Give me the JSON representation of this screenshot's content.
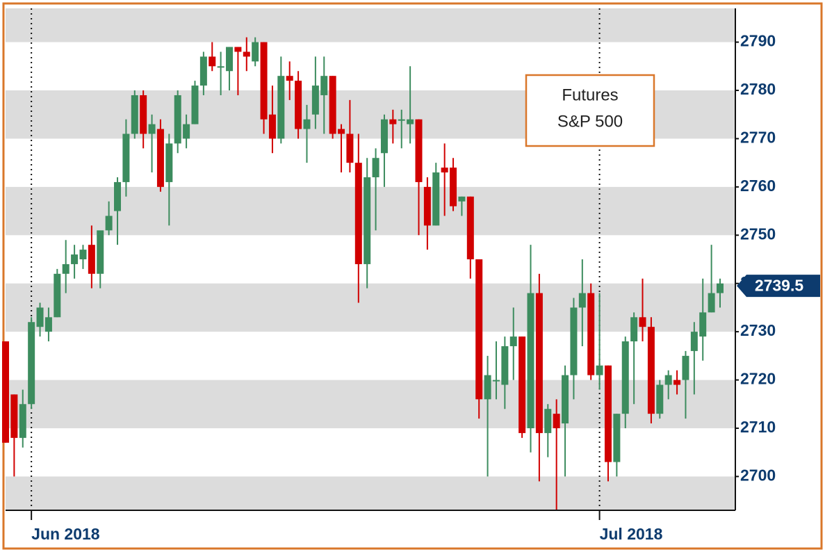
{
  "chart_data": {
    "type": "candlestick",
    "annotation": [
      "Futures",
      "S&P 500"
    ],
    "last_value": 2739.5,
    "up_color": "#3c8c5e",
    "down_color": "#d10000",
    "grid": "bands",
    "ylim": [
      2693,
      2797
    ],
    "yticks": [
      2700,
      2710,
      2720,
      2730,
      2740,
      2750,
      2760,
      2770,
      2780,
      2790
    ],
    "categories": [
      null,
      null,
      null,
      "Jun 2018",
      null,
      null,
      null,
      null,
      null,
      null,
      null,
      null,
      null,
      null,
      null,
      null,
      null,
      null,
      null,
      null,
      null,
      null,
      null,
      null,
      null,
      null,
      null,
      null,
      null,
      null,
      null,
      null,
      null,
      null,
      null,
      null,
      null,
      null,
      null,
      null,
      null,
      null,
      null,
      null,
      null,
      null,
      null,
      null,
      null,
      null,
      null,
      null,
      null,
      null,
      null,
      null,
      null,
      null,
      null,
      null,
      null,
      null,
      null,
      null,
      null,
      null,
      null,
      null,
      null,
      "Jul 2018",
      null,
      null,
      null,
      null,
      null,
      null,
      null,
      null,
      null,
      null,
      null,
      null,
      null,
      null
    ],
    "open": [
      2728,
      2717,
      2708,
      2715,
      2731,
      2730,
      2733,
      2742,
      2744,
      2745,
      2748,
      2742,
      2751,
      2755,
      2761,
      2771,
      2779,
      2771,
      2772,
      2761,
      2769,
      2770,
      2773,
      2781,
      2787,
      2785,
      2784,
      2789,
      2788,
      2786,
      2790,
      2775,
      2770,
      2783,
      2782,
      2772,
      2775,
      2779,
      2783,
      2772,
      2771,
      2765,
      2744,
      2762,
      2767,
      2774,
      2774,
      2773,
      2774,
      2760,
      2752,
      2764,
      2764,
      2757,
      2758,
      2745,
      2716,
      2720,
      2719,
      2727,
      2729,
      2710,
      2738,
      2709,
      2713,
      2711,
      2721,
      2735,
      2738,
      2721,
      2723,
      2703,
      2713,
      2728,
      2733,
      2731,
      2713,
      2719,
      2720,
      2720,
      2726,
      2729,
      2734,
      2738
    ],
    "high": [
      2728,
      2717,
      2718,
      2733,
      2736,
      2735,
      2743,
      2749,
      2748,
      2748,
      2752,
      2750,
      2757,
      2762,
      2774,
      2780,
      2780,
      2775,
      2774,
      2771,
      2780,
      2775,
      2782,
      2788,
      2790,
      2788,
      2789,
      2789,
      2791,
      2791,
      2790,
      2781,
      2787,
      2786,
      2784,
      2777,
      2787,
      2787,
      2783,
      2773,
      2778,
      2771,
      2766,
      2768,
      2775,
      2776,
      2776,
      2785,
      2774,
      2762,
      2765,
      2769,
      2766,
      2758,
      2758,
      2745,
      2725,
      2728,
      2729,
      2735,
      2729,
      2748,
      2742,
      2715,
      2716,
      2723,
      2737,
      2745,
      2740,
      2738,
      2723,
      2713,
      2729,
      2734,
      2741,
      2733,
      2720,
      2722,
      2722,
      2726,
      2732,
      2741,
      2748,
      2741
    ],
    "low": [
      2707,
      2700,
      2706,
      2714,
      2729,
      2728,
      2733,
      2738,
      2741,
      2743,
      2739,
      2739,
      2750,
      2748,
      2758,
      2770,
      2768,
      2763,
      2759,
      2752,
      2767,
      2768,
      2773,
      2779,
      2784,
      2779,
      2780,
      2779,
      2784,
      2785,
      2771,
      2767,
      2769,
      2778,
      2770,
      2765,
      2772,
      2771,
      2770,
      2763,
      2763,
      2736,
      2739,
      2751,
      2760,
      2769,
      2768,
      2769,
      2750,
      2747,
      2752,
      2754,
      2755,
      2754,
      2741,
      2712,
      2700,
      2716,
      2714,
      2720,
      2708,
      2705,
      2699,
      2704,
      2693,
      2700,
      2716,
      2727,
      2720,
      2718,
      2699,
      2700,
      2710,
      2715,
      2728,
      2711,
      2712,
      2716,
      2717,
      2712,
      2717,
      2724,
      2734,
      2735
    ],
    "close": [
      2707,
      2708,
      2715,
      2732,
      2735,
      2733,
      2742,
      2744,
      2746,
      2747,
      2742,
      2751,
      2754,
      2761,
      2771,
      2779,
      2771,
      2773,
      2760,
      2769,
      2779,
      2773,
      2781,
      2787,
      2785,
      2785,
      2789,
      2788,
      2787,
      2790,
      2774,
      2770,
      2783,
      2782,
      2772,
      2774,
      2781,
      2783,
      2771,
      2771,
      2765,
      2744,
      2762,
      2766,
      2774,
      2773,
      2774,
      2774,
      2761,
      2752,
      2763,
      2763,
      2756,
      2758,
      2745,
      2716,
      2721,
      2720,
      2727,
      2729,
      2709,
      2738,
      2709,
      2714,
      2710,
      2721,
      2735,
      2738,
      2721,
      2723,
      2703,
      2713,
      2728,
      2733,
      2731,
      2713,
      2719,
      2721,
      2719,
      2725,
      2730,
      2734,
      2738,
      2740
    ]
  }
}
